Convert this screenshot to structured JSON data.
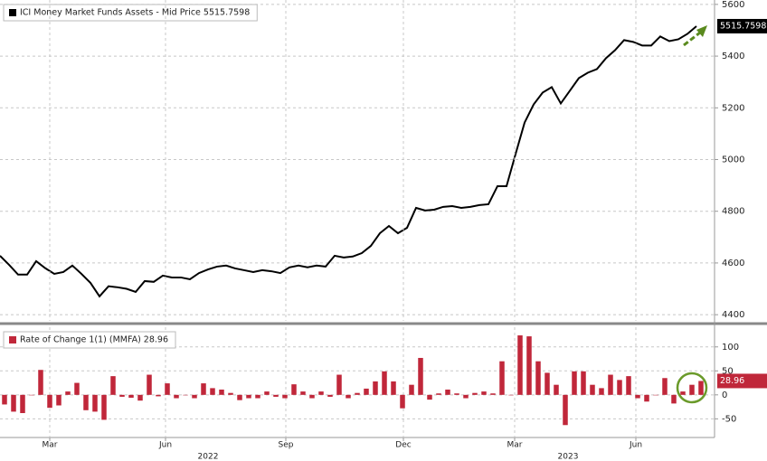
{
  "chart_data": [
    {
      "type": "line",
      "series": [
        {
          "name": "ICI Money Market Funds Assets - Mid Price 5515.7598",
          "color": "#000000",
          "values": [
            4628,
            4593,
            4555,
            4555,
            4607,
            4580,
            4558,
            4565,
            4590,
            4558,
            4523,
            4471,
            4510,
            4506,
            4500,
            4488,
            4530,
            4527,
            4551,
            4544,
            4544,
            4537,
            4561,
            4575,
            4586,
            4590,
            4579,
            4572,
            4565,
            4572,
            4568,
            4561,
            4583,
            4590,
            4583,
            4590,
            4586,
            4628,
            4621,
            4625,
            4638,
            4666,
            4715,
            4743,
            4715,
            4736,
            4813,
            4803,
            4806,
            4817,
            4820,
            4813,
            4817,
            4824,
            4827,
            4897,
            4897,
            5021,
            5143,
            5213,
            5259,
            5280,
            5217,
            5266,
            5315,
            5336,
            5350,
            5392,
            5423,
            5462,
            5455,
            5441,
            5441,
            5476,
            5458,
            5465,
            5486,
            5515.7598
          ]
        }
      ],
      "xlim": [
        0,
        79
      ],
      "ylim": [
        4376,
        5617
      ],
      "yticks": [
        4400,
        4600,
        4800,
        5000,
        5200,
        5400,
        5600
      ],
      "grid": true
    },
    {
      "type": "bar",
      "series": [
        {
          "name": "Rate of Change 1(1) (MMFA) 28.96",
          "color": "#c0273a",
          "values": [
            -20,
            -35,
            -38,
            0,
            52,
            -27,
            -22,
            7,
            25,
            -32,
            -35,
            -52,
            39,
            -4,
            -6,
            -12,
            42,
            -3,
            24,
            -7,
            0,
            -7,
            24,
            14,
            11,
            4,
            -11,
            -7,
            -7,
            7,
            -4,
            -7,
            22,
            7,
            -7,
            7,
            -4,
            42,
            -7,
            4,
            13,
            28,
            49,
            28,
            -28,
            21,
            77,
            -10,
            3,
            11,
            3,
            -7,
            4,
            7,
            3,
            70,
            0,
            124,
            122,
            70,
            46,
            21,
            -63,
            49,
            49,
            21,
            14,
            42,
            31,
            39,
            -7,
            -14,
            0,
            35,
            -18,
            7,
            21,
            28.96
          ]
        }
      ],
      "xlim": [
        0,
        79
      ],
      "ylim": [
        -87,
        141
      ],
      "yticks": [
        -50,
        0,
        50,
        100
      ],
      "xticks": [
        {
          "value": 5.5,
          "label": "Mar"
        },
        {
          "value": 18.3,
          "label": "Jun"
        },
        {
          "value": 31.6,
          "label": "Sep"
        },
        {
          "value": 44.6,
          "label": "Dec"
        },
        {
          "value": 56.9,
          "label": "Mar"
        },
        {
          "value": 70.3,
          "label": "Jun"
        }
      ],
      "year_ticks": [
        {
          "value": 23,
          "label": "2022"
        },
        {
          "value": 62.8,
          "label": "2023"
        }
      ],
      "grid": true
    }
  ]
}
